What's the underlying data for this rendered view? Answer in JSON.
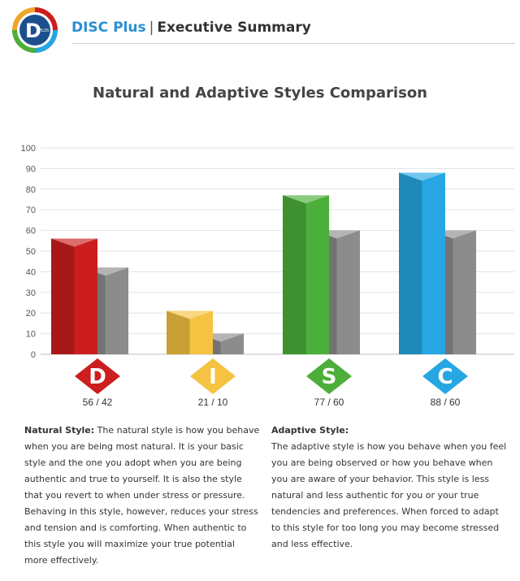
{
  "header": {
    "brand": "DISC Plus",
    "separator": "|",
    "section": "Executive Summary"
  },
  "logo": {
    "letter": "D",
    "tag": "PLUS"
  },
  "colors": {
    "d": "#cc1e1e",
    "i": "#f5c242",
    "s": "#4caf3a",
    "c": "#26a7e3",
    "adaptive": "#8c8c8c"
  },
  "chart_data": {
    "type": "bar",
    "title": "Natural and Adaptive Styles Comparison",
    "categories": [
      "D",
      "I",
      "S",
      "C"
    ],
    "series": [
      {
        "values": [
          56,
          21,
          77,
          88
        ]
      },
      {
        "values": [
          42,
          10,
          60,
          60
        ]
      }
    ],
    "value_labels": [
      "56 / 42",
      "21 / 10",
      "77 / 60",
      "88 / 60"
    ],
    "yticks": [
      0,
      10,
      20,
      30,
      40,
      50,
      60,
      70,
      80,
      90,
      100
    ],
    "ylim": [
      0,
      100
    ],
    "grid": true
  },
  "text": {
    "natural_title": "Natural Style:",
    "natural_body": " The natural style is how you behave when you are being  most natural. It is your basic style and the one you adopt when you are being authentic and true to yourself.  It is also the style that you revert to when under stress or pressure. Behaving in this style, however, reduces your stress and tension and is comforting. When authentic to this style you will maximize your true potential more effectively.",
    "adaptive_title": "Adaptive Style:",
    "adaptive_body": "The adaptive style is how you behave when you feel you are being observed or how you behave when you are aware of your behavior. This style is less natural and less authentic for you or your true tendencies and preferences. When forced to adapt to this style for too long you may become stressed and less effective."
  }
}
